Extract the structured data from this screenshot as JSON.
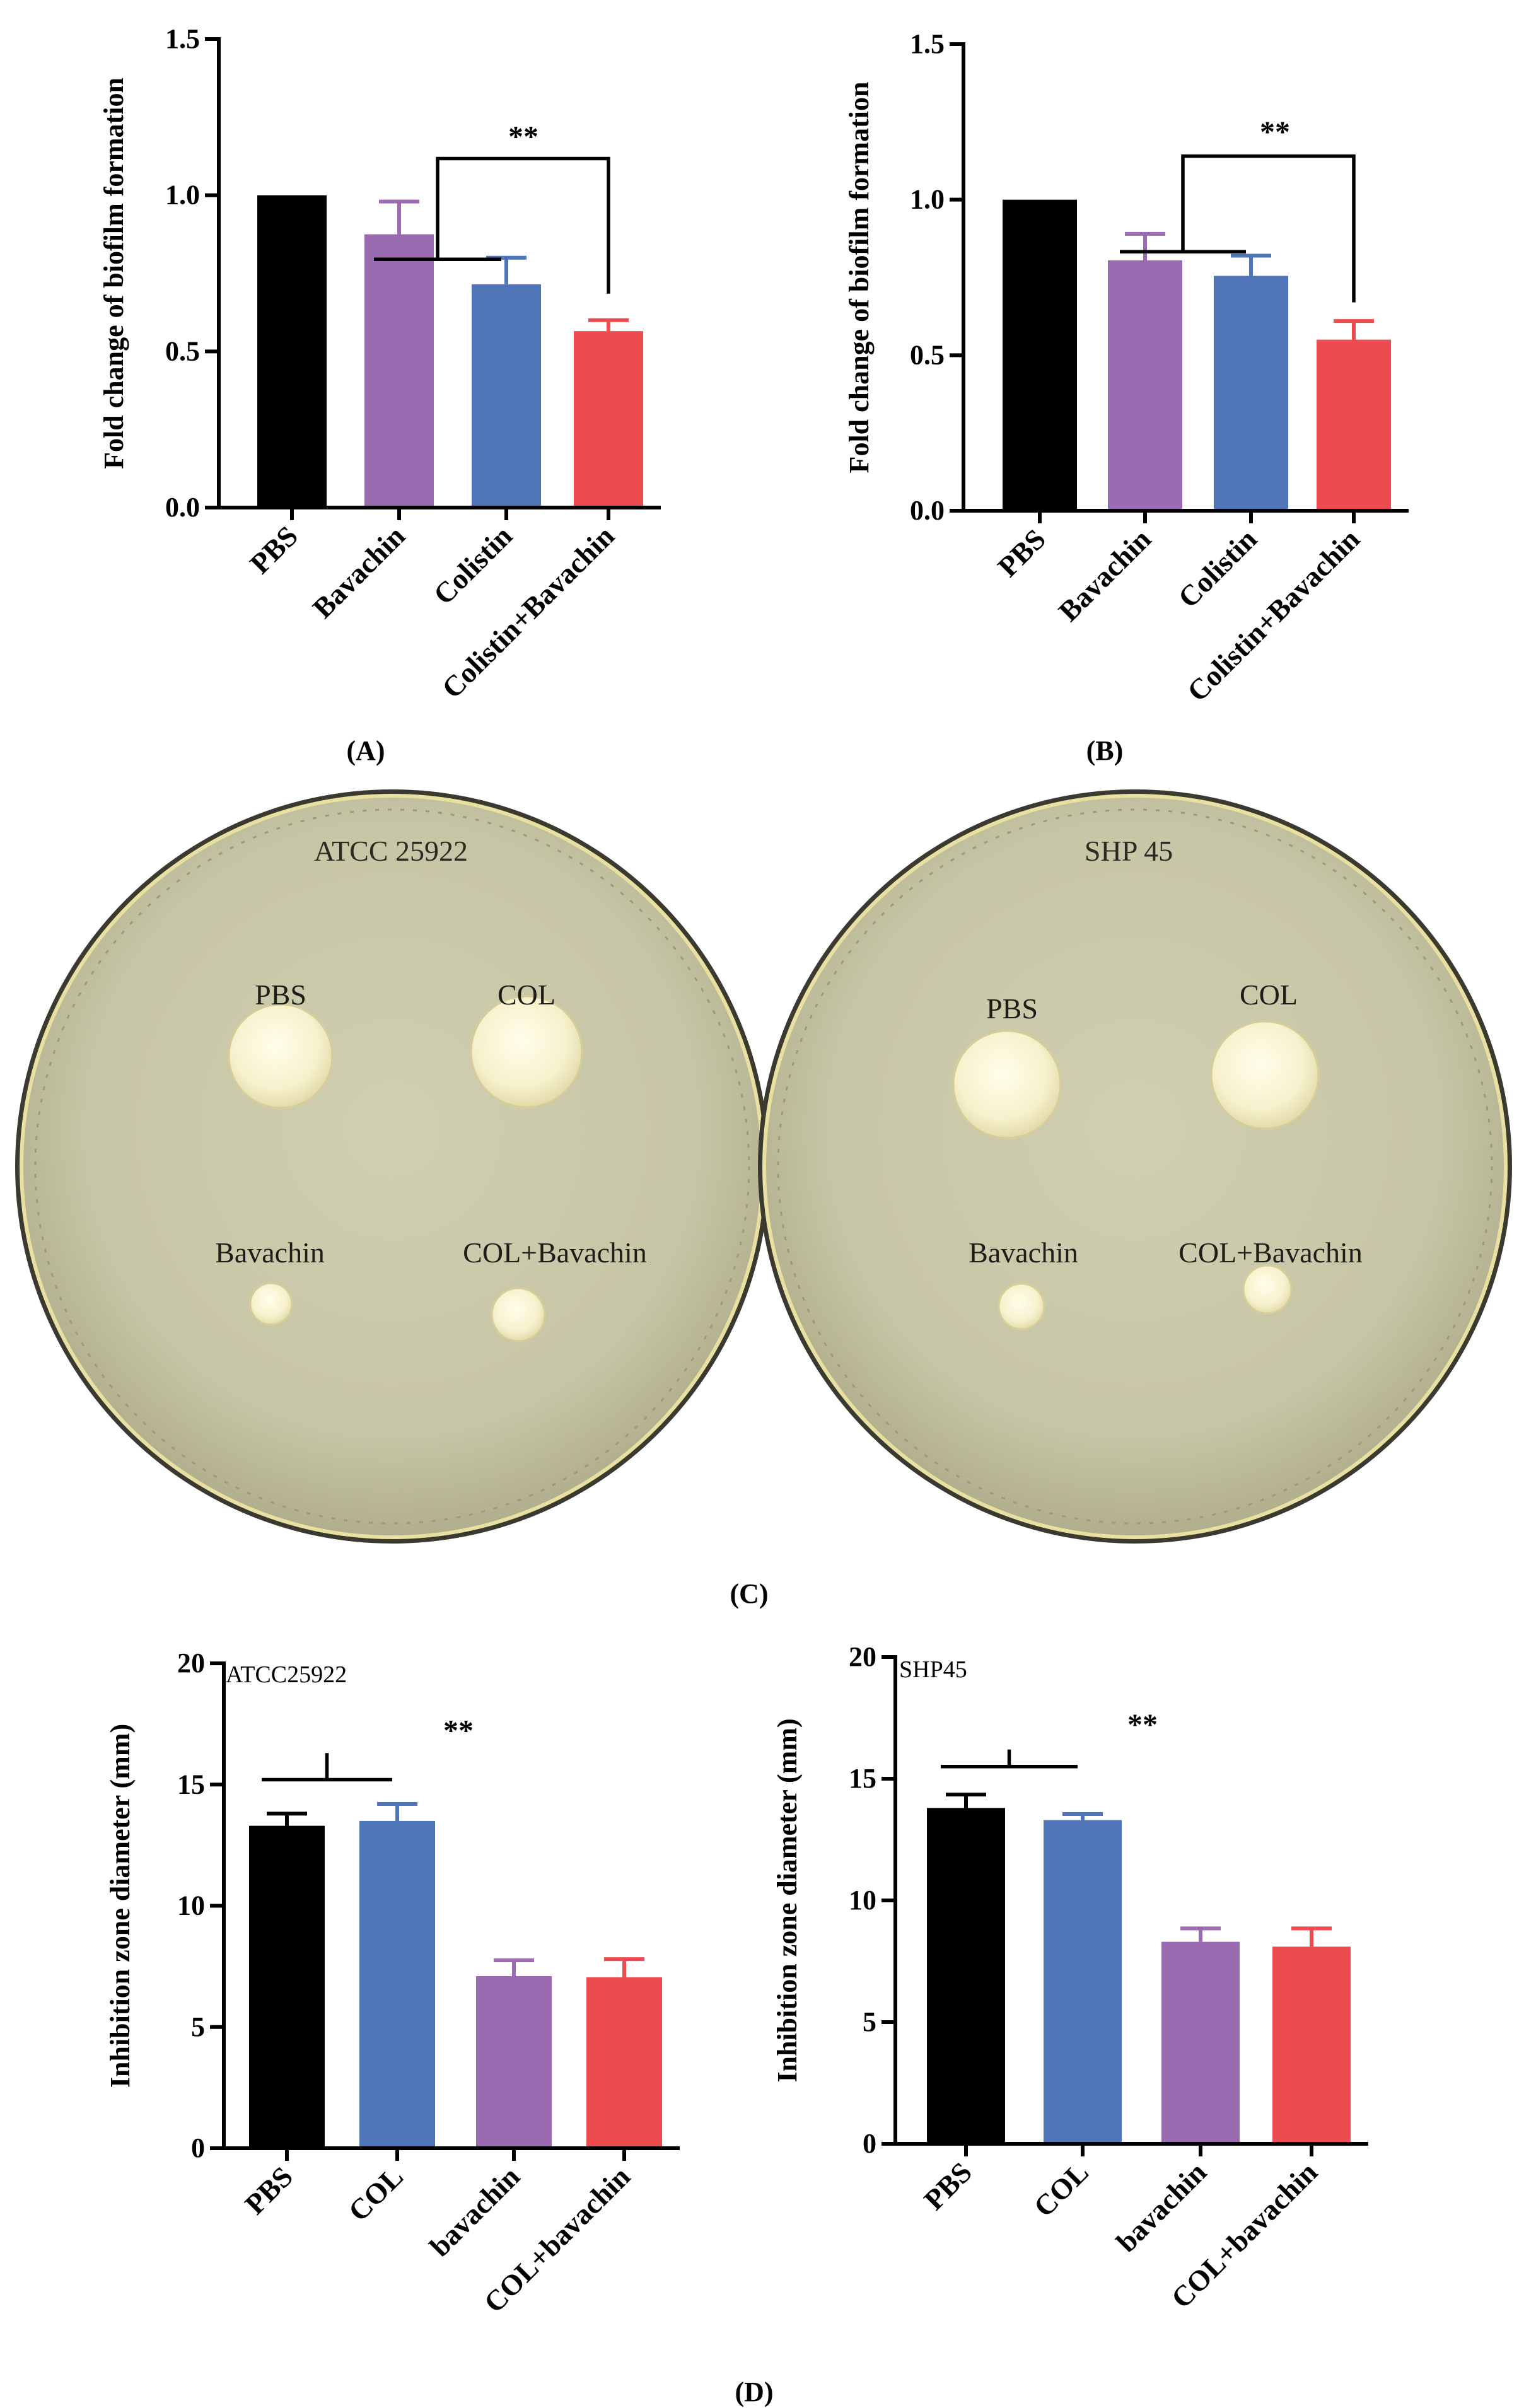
{
  "panel_labels": [
    "(A)",
    "(B)",
    "(C)",
    "(D)"
  ],
  "colors": {
    "PBS": "#000000",
    "Bavachin": "#9A6BB0",
    "Colistin": "#4F74B8",
    "Colistin+Bavachin": "#EE4B50"
  },
  "plates": [
    {
      "title": "ATCC 25922",
      "spots": [
        {
          "label": "PBS",
          "diameter_mm": 13.3
        },
        {
          "label": "COL",
          "diameter_mm": 13.5
        },
        {
          "label": "Bavachin",
          "diameter_mm": 7.1
        },
        {
          "label": "COL+Bavachin",
          "diameter_mm": 7.05
        }
      ]
    },
    {
      "title": "SHP 45",
      "spots": [
        {
          "label": "PBS",
          "diameter_mm": 13.8
        },
        {
          "label": "COL",
          "diameter_mm": 13.3
        },
        {
          "label": "Bavachin",
          "diameter_mm": 8.3
        },
        {
          "label": "COL+Bavachin",
          "diameter_mm": 8.1
        }
      ]
    }
  ],
  "chart_data": [
    {
      "panel": "(A)",
      "type": "bar",
      "title": "",
      "ylabel": "Fold change of biofilm formation",
      "xlabel": "",
      "ylim": [
        0,
        1.5
      ],
      "yticks": [
        "0.0",
        "0.5",
        "1.0",
        "1.5"
      ],
      "categories": [
        "PBS",
        "Bavachin",
        "Colistin",
        "Colistin+Bavachin"
      ],
      "values": [
        1.0,
        0.875,
        0.715,
        0.565
      ],
      "errors": [
        0,
        0.105,
        0.085,
        0.035
      ],
      "significance": "**"
    },
    {
      "panel": "(B)",
      "type": "bar",
      "title": "",
      "ylabel": "Fold change of biofilm formation",
      "xlabel": "",
      "ylim": [
        0,
        1.5
      ],
      "yticks": [
        "0.0",
        "0.5",
        "1.0",
        "1.5"
      ],
      "categories": [
        "PBS",
        "Bavachin",
        "Colistin",
        "Colistin+Bavachin"
      ],
      "values": [
        1.0,
        0.805,
        0.755,
        0.55
      ],
      "errors": [
        0,
        0.085,
        0.065,
        0.06
      ],
      "significance": "**"
    },
    {
      "panel": "(D)",
      "type": "bar",
      "title": "ATCC25922",
      "ylabel": "Inhibition zone diameter (mm)",
      "xlabel": "",
      "ylim": [
        0,
        20
      ],
      "yticks": [
        "0",
        "5",
        "10",
        "15",
        "20"
      ],
      "categories": [
        "PBS",
        "COL",
        "bavachin",
        "COL+bavachin"
      ],
      "values": [
        13.3,
        13.5,
        7.1,
        7.05
      ],
      "errors": [
        0.5,
        0.7,
        0.65,
        0.75
      ],
      "significance": "**"
    },
    {
      "panel": "(D)",
      "type": "bar",
      "title": "SHP45",
      "ylabel": "Inhibition zone diameter (mm)",
      "xlabel": "",
      "ylim": [
        0,
        20
      ],
      "yticks": [
        "0",
        "5",
        "10",
        "15",
        "20"
      ],
      "categories": [
        "PBS",
        "COL",
        "bavachin",
        "COL+bavachin"
      ],
      "values": [
        13.8,
        13.3,
        8.3,
        8.1
      ],
      "errors": [
        0.55,
        0.25,
        0.55,
        0.75
      ],
      "significance": "**"
    }
  ]
}
